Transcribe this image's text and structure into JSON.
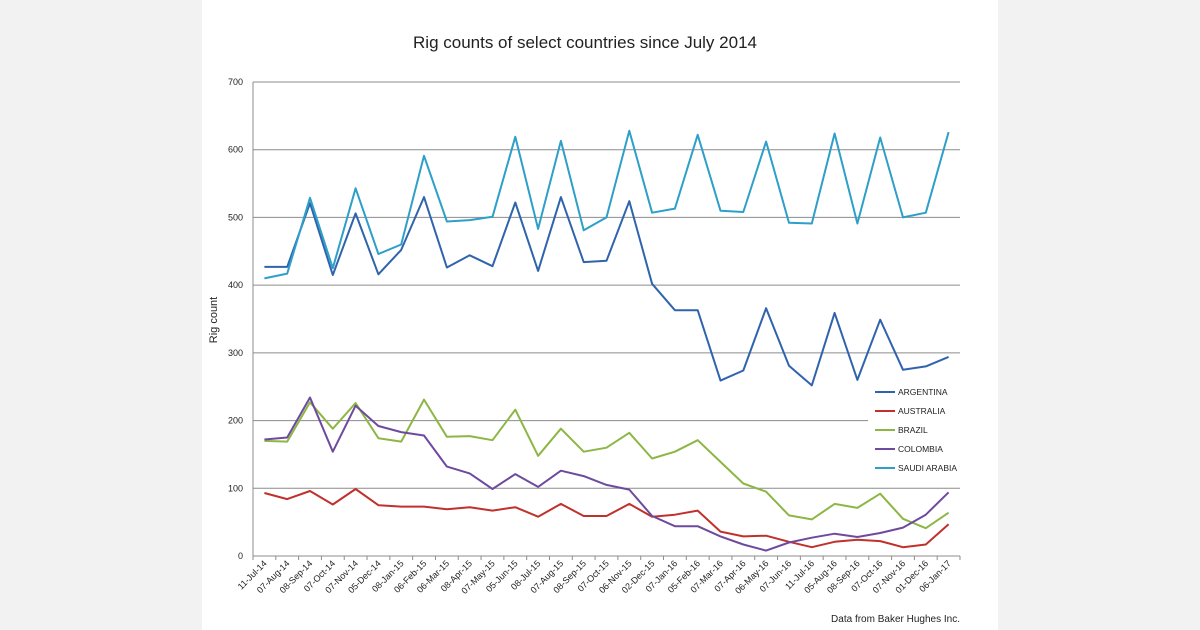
{
  "chart_data": {
    "type": "line",
    "title": "Rig counts of select countries since July 2014",
    "xlabel": "",
    "ylabel": "Rig count",
    "ylim": [
      0,
      700
    ],
    "yticks": [
      0,
      100,
      200,
      300,
      400,
      500,
      600,
      700
    ],
    "grid": true,
    "legend_position": "right",
    "source_note": "Data from Baker Hughes Inc.",
    "categories": [
      "11-Jul-14",
      "07-Aug-14",
      "08-Sep-14",
      "07-Oct-14",
      "07-Nov-14",
      "05-Dec-14",
      "08-Jan-15",
      "06-Feb-15",
      "06-Mar-15",
      "08-Apr-15",
      "07-May-15",
      "05-Jun-15",
      "08-Jul-15",
      "07-Aug-15",
      "08-Sep-15",
      "07-Oct-15",
      "06-Nov-15",
      "02-Dec-15",
      "07-Jan-16",
      "05-Feb-16",
      "07-Mar-16",
      "07-Apr-16",
      "06-May-16",
      "07-Jun-16",
      "11-Jul-16",
      "05-Aug-16",
      "08-Sep-16",
      "07-Oct-16",
      "07-Nov-16",
      "01-Dec-16",
      "06-Jan-17"
    ],
    "series": [
      {
        "name": "ARGENTINA",
        "color": "#2f64ad",
        "values": [
          427,
          427,
          521,
          415,
          506,
          416,
          452,
          530,
          426,
          444,
          428,
          522,
          421,
          530,
          434,
          436,
          524,
          402,
          363,
          363,
          259,
          274,
          366,
          281,
          252,
          359,
          260,
          349,
          275,
          280,
          294
        ]
      },
      {
        "name": "AUSTRALIA",
        "color": "#c0312c",
        "values": [
          93,
          84,
          96,
          76,
          99,
          75,
          73,
          73,
          69,
          72,
          67,
          72,
          58,
          77,
          59,
          59,
          77,
          58,
          61,
          67,
          36,
          29,
          30,
          21,
          13,
          21,
          24,
          22,
          13,
          17,
          47
        ]
      },
      {
        "name": "BRAZIL",
        "color": "#8db644",
        "values": [
          170,
          169,
          227,
          188,
          226,
          174,
          169,
          231,
          176,
          177,
          171,
          216,
          148,
          188,
          154,
          160,
          182,
          144,
          154,
          171,
          139,
          107,
          95,
          60,
          54,
          77,
          71,
          92,
          55,
          41,
          64
        ]
      },
      {
        "name": "COLOMBIA",
        "color": "#6e4a9e",
        "values": [
          172,
          175,
          234,
          154,
          222,
          192,
          183,
          178,
          132,
          122,
          99,
          121,
          102,
          126,
          118,
          105,
          98,
          59,
          44,
          44,
          29,
          17,
          8,
          20,
          27,
          33,
          28,
          34,
          42,
          61,
          94
        ]
      },
      {
        "name": "SAUDI ARABIA",
        "color": "#2e9fc8",
        "values": [
          410,
          417,
          529,
          425,
          543,
          446,
          460,
          591,
          494,
          496,
          501,
          619,
          483,
          613,
          481,
          500,
          628,
          507,
          513,
          622,
          510,
          508,
          612,
          492,
          491,
          624,
          491,
          618,
          500,
          507,
          626
        ]
      }
    ]
  }
}
